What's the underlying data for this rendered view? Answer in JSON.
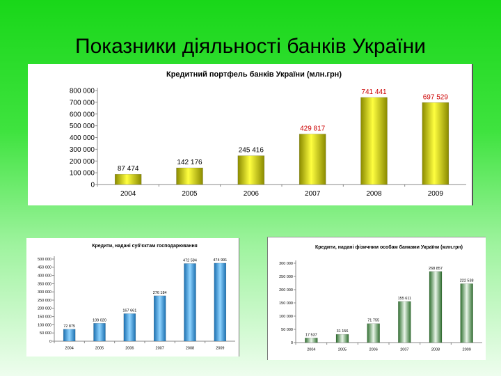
{
  "slide": {
    "title": "Показники діяльності банків України"
  },
  "colors": {
    "background_top": "#19d719",
    "background_bottom": "#eefdee",
    "main_bar": "#d8d800",
    "main_label_normal": "#000000",
    "main_label_red": "#cc0000",
    "left_bar": "#2aa0e8",
    "right_bar": "#3e8a3e"
  },
  "chart_data": [
    {
      "id": "main",
      "type": "bar",
      "title": "Кредитний портфель банків України (млн.грн)",
      "categories": [
        "2004",
        "2005",
        "2006",
        "2007",
        "2008",
        "2009"
      ],
      "values": [
        87474,
        142176,
        245416,
        429817,
        741441,
        697529
      ],
      "data_labels": [
        "87 474",
        "142 176",
        "245 416",
        "429 817",
        "741 441",
        "697 529"
      ],
      "data_label_colors": [
        "#000000",
        "#000000",
        "#000000",
        "#cc0000",
        "#cc0000",
        "#cc0000"
      ],
      "yticks": [
        0,
        100000,
        200000,
        300000,
        400000,
        500000,
        600000,
        700000,
        800000
      ],
      "ytick_labels": [
        "0",
        "100 000",
        "200 000",
        "300 000",
        "400 000",
        "500 000",
        "600 000",
        "700 000",
        "800 000"
      ],
      "ylim": [
        0,
        800000
      ],
      "grid": false,
      "legend": "none"
    },
    {
      "id": "left",
      "type": "bar",
      "title": "Кредити, надані суб'єктам господарювання",
      "categories": [
        "2004",
        "2005",
        "2006",
        "2007",
        "2008",
        "2009"
      ],
      "values": [
        72875,
        109020,
        167661,
        276184,
        472584,
        474991
      ],
      "data_labels": [
        "72 875",
        "109 020",
        "167 661",
        "276 184",
        "472 584",
        "474 991"
      ],
      "yticks": [
        0,
        50000,
        100000,
        150000,
        200000,
        250000,
        300000,
        350000,
        400000,
        450000,
        500000
      ],
      "ytick_labels": [
        "0",
        "50 000",
        "100 000",
        "150 000",
        "200 000",
        "250 000",
        "300 000",
        "350 000",
        "400 000",
        "450 000",
        "500 000"
      ],
      "ylim": [
        0,
        500000
      ],
      "grid": false,
      "legend": "none"
    },
    {
      "id": "right",
      "type": "bar",
      "title": "Кредити, надані фізичним особам банками України (млн.грн)",
      "categories": [
        "2004",
        "2005",
        "2006",
        "2007",
        "2008",
        "2009"
      ],
      "values": [
        17537,
        31156,
        71755,
        155611,
        268857,
        222538
      ],
      "data_labels": [
        "17 537",
        "31 156",
        "71 755",
        "155 611",
        "268 857",
        "222 538"
      ],
      "yticks": [
        0,
        50000,
        100000,
        150000,
        200000,
        250000,
        300000
      ],
      "ytick_labels": [
        "0",
        "50 000",
        "100 000",
        "150 000",
        "200 000",
        "250 000",
        "300 000"
      ],
      "ylim": [
        0,
        300000
      ],
      "grid": false,
      "legend": "none"
    }
  ]
}
